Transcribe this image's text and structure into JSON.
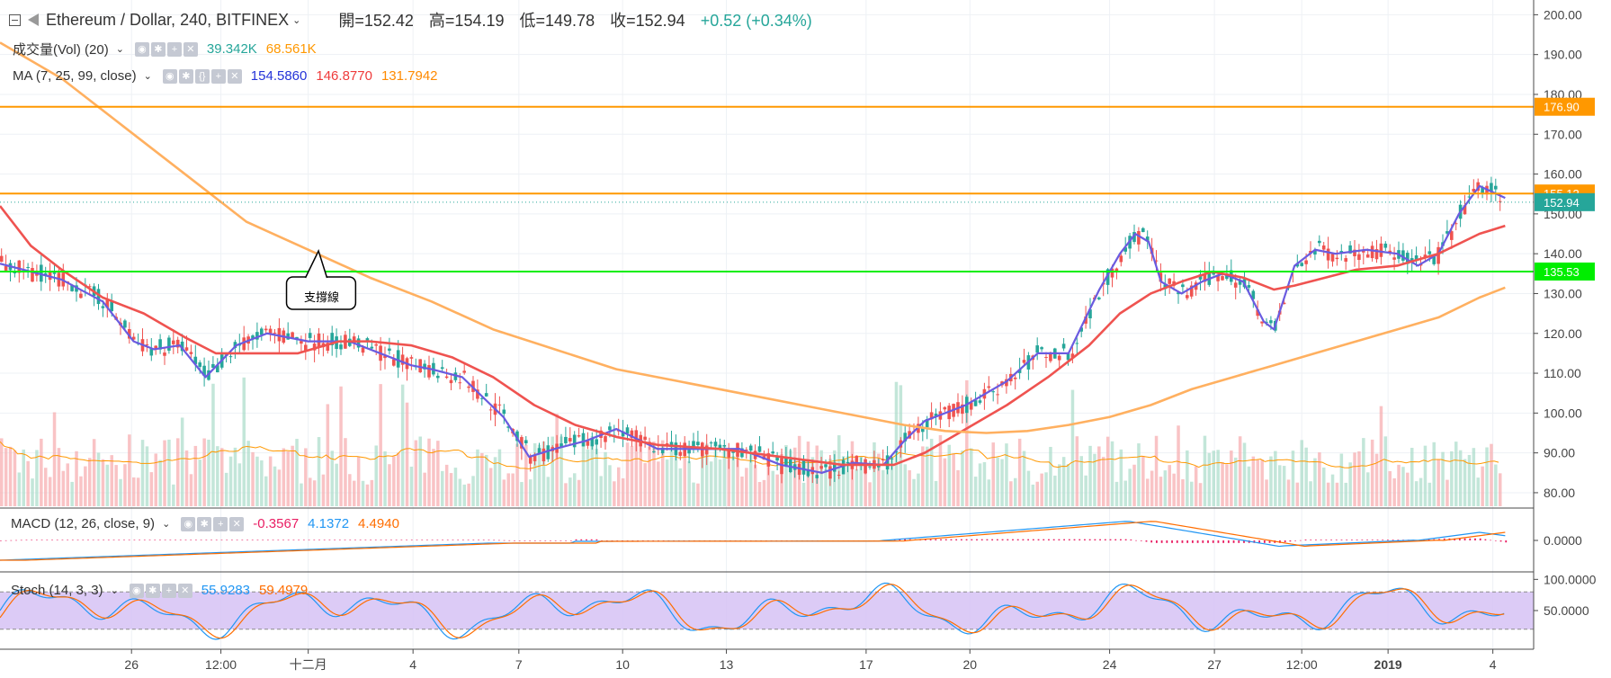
{
  "header": {
    "symbol": "Ethereum / Dollar, 240, BITFINEX",
    "open": "開=152.42",
    "high": "高=154.19",
    "low": "低=149.78",
    "close": "收=152.94",
    "change": "+0.52 (+0.34%)"
  },
  "legends": {
    "vol": {
      "label": "成交量(Vol) (20)",
      "values": [
        "39.342K",
        "68.561K"
      ],
      "colors": [
        "#26a69a",
        "#ff9800"
      ]
    },
    "ma": {
      "label": "MA (7, 25, 99, close)",
      "values": [
        "154.5860",
        "146.8770",
        "131.7942"
      ],
      "colors": [
        "#2433d8",
        "#ef3b3b",
        "#ff8a00"
      ]
    },
    "macd": {
      "label": "MACD (12, 26, close, 9)",
      "values": [
        "-0.3567",
        "4.1372",
        "4.4940"
      ],
      "colors": [
        "#e91e63",
        "#2196f3",
        "#ff6d00"
      ]
    },
    "stoch": {
      "label": "Stoch (14, 3, 3)",
      "values": [
        "55.9283",
        "59.4979"
      ],
      "colors": [
        "#2196f3",
        "#ff6d00"
      ]
    }
  },
  "annotation": {
    "text": "支撐線"
  },
  "chart_data": {
    "type": "candlestick",
    "symbol": "ETHUSD",
    "interval": "240",
    "price_axis": {
      "ticks": [
        200,
        190,
        180,
        170,
        160,
        150,
        140,
        130,
        120,
        110,
        100,
        90,
        80
      ],
      "range": [
        76.6,
        203.7
      ]
    },
    "time_axis": {
      "ticks": [
        "26",
        "12:00",
        "十二月",
        "4",
        "7",
        "10",
        "13",
        "17",
        "20",
        "24",
        "27",
        "12:00",
        "2019",
        "4"
      ]
    },
    "horizontal_lines": [
      {
        "value": 176.9,
        "label": "176.90",
        "color": "#ff9800"
      },
      {
        "value": 155.12,
        "label": "155.12",
        "color": "#ff9800"
      },
      {
        "value": 135.53,
        "label": "135.53",
        "color": "#00ee00"
      }
    ],
    "last_price": {
      "value": 152.94,
      "label": "152.94",
      "color": "#26a69a"
    },
    "ma_series": [
      {
        "name": "MA 7",
        "color": "#6a5be0",
        "points": [
          [
            0,
            137.5
          ],
          [
            60,
            133.5
          ],
          [
            100,
            128
          ],
          [
            130,
            118
          ],
          [
            150,
            116
          ],
          [
            175,
            117
          ],
          [
            200,
            109
          ],
          [
            230,
            117
          ],
          [
            260,
            120
          ],
          [
            300,
            118
          ],
          [
            340,
            118
          ],
          [
            380,
            114
          ],
          [
            400,
            112
          ],
          [
            420,
            111
          ],
          [
            450,
            109
          ],
          [
            490,
            99
          ],
          [
            515,
            89
          ],
          [
            540,
            91
          ],
          [
            570,
            93
          ],
          [
            600,
            96
          ],
          [
            640,
            91
          ],
          [
            690,
            91
          ],
          [
            720,
            91
          ],
          [
            760,
            87
          ],
          [
            800,
            85
          ],
          [
            830,
            87.5
          ],
          [
            860,
            87
          ],
          [
            880,
            93
          ],
          [
            900,
            98
          ],
          [
            940,
            102
          ],
          [
            980,
            108
          ],
          [
            1010,
            115
          ],
          [
            1040,
            115
          ],
          [
            1070,
            131
          ],
          [
            1090,
            140
          ],
          [
            1105,
            145
          ],
          [
            1118,
            143
          ],
          [
            1130,
            133
          ],
          [
            1150,
            130
          ],
          [
            1170,
            133
          ],
          [
            1190,
            135
          ],
          [
            1210,
            133
          ],
          [
            1230,
            123
          ],
          [
            1240,
            121
          ],
          [
            1260,
            137
          ],
          [
            1280,
            141
          ],
          [
            1300,
            140
          ],
          [
            1330,
            141
          ],
          [
            1360,
            140
          ],
          [
            1380,
            137
          ],
          [
            1400,
            140
          ],
          [
            1420,
            150
          ],
          [
            1440,
            157
          ],
          [
            1465,
            154
          ]
        ]
      },
      {
        "name": "MA 25",
        "color": "#ef5350",
        "points": [
          [
            0,
            152
          ],
          [
            30,
            142
          ],
          [
            60,
            136
          ],
          [
            100,
            129
          ],
          [
            140,
            125
          ],
          [
            180,
            119
          ],
          [
            210,
            115
          ],
          [
            240,
            115
          ],
          [
            290,
            115
          ],
          [
            330,
            118
          ],
          [
            360,
            118
          ],
          [
            400,
            117
          ],
          [
            440,
            114
          ],
          [
            480,
            109
          ],
          [
            520,
            102
          ],
          [
            560,
            97
          ],
          [
            600,
            94
          ],
          [
            640,
            92
          ],
          [
            700,
            91
          ],
          [
            760,
            89
          ],
          [
            820,
            87
          ],
          [
            870,
            87
          ],
          [
            900,
            90
          ],
          [
            940,
            96
          ],
          [
            980,
            102
          ],
          [
            1020,
            109
          ],
          [
            1060,
            117
          ],
          [
            1090,
            125
          ],
          [
            1120,
            130
          ],
          [
            1150,
            133
          ],
          [
            1180,
            135.5
          ],
          [
            1210,
            134
          ],
          [
            1240,
            131
          ],
          [
            1260,
            132
          ],
          [
            1290,
            134
          ],
          [
            1320,
            136
          ],
          [
            1360,
            137
          ],
          [
            1400,
            140
          ],
          [
            1440,
            145
          ],
          [
            1465,
            147
          ]
        ]
      },
      {
        "name": "MA 99",
        "color": "#ffb060",
        "points": [
          [
            0,
            193
          ],
          [
            60,
            184
          ],
          [
            120,
            172
          ],
          [
            180,
            160
          ],
          [
            240,
            148
          ],
          [
            300,
            141
          ],
          [
            360,
            134
          ],
          [
            420,
            128
          ],
          [
            480,
            121
          ],
          [
            540,
            116
          ],
          [
            600,
            111
          ],
          [
            660,
            108
          ],
          [
            720,
            105
          ],
          [
            780,
            102
          ],
          [
            840,
            99
          ],
          [
            880,
            97
          ],
          [
            920,
            95.5
          ],
          [
            960,
            95
          ],
          [
            1000,
            95.5
          ],
          [
            1040,
            97
          ],
          [
            1080,
            99
          ],
          [
            1120,
            102
          ],
          [
            1160,
            106
          ],
          [
            1200,
            109
          ],
          [
            1240,
            112
          ],
          [
            1280,
            115
          ],
          [
            1320,
            118
          ],
          [
            1360,
            121
          ],
          [
            1400,
            124
          ],
          [
            1440,
            129
          ],
          [
            1465,
            131.5
          ]
        ]
      }
    ],
    "volume": {
      "range": [
        0,
        68.561
      ],
      "unit": "K",
      "ma": {
        "name": "Vol MA 20",
        "color": "#ff9800"
      }
    },
    "macd": {
      "ticks": [
        "0.0000"
      ],
      "macd_color": "#2196f3",
      "signal_color": "#ff6d00",
      "hist_color": "#e91e63"
    },
    "stoch": {
      "ticks": [
        "100.0000",
        "50.0000"
      ],
      "bands": [
        80,
        20
      ],
      "k_color": "#2196f3",
      "d_color": "#ff6d00",
      "band_fill": "#d6c2f5"
    }
  }
}
